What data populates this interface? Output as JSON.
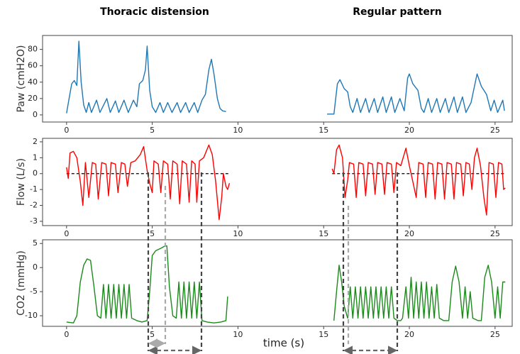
{
  "column_titles": [
    "Thoracic distension",
    "Regular pattern"
  ],
  "chart_data": [
    {
      "type": "line",
      "ylabel": "Paw (cmH2O)",
      "xlim": [
        -1.4,
        26
      ],
      "ylim": [
        -8.7,
        97
      ],
      "xticks": [
        0,
        5,
        10,
        15,
        20,
        25
      ],
      "yticks": [
        0,
        20,
        40,
        60,
        80
      ],
      "series": [
        {
          "color": "#1f77b4",
          "x": [
            0,
            0.15,
            0.3,
            0.45,
            0.6,
            0.72,
            0.85,
            1.0,
            1.15,
            1.3,
            1.45,
            1.75,
            1.95,
            2.35,
            2.55,
            2.85,
            3.05,
            3.35,
            3.6,
            3.9,
            4.1,
            4.25,
            4.45,
            4.6,
            4.7,
            4.85,
            5.0,
            5.2,
            5.45,
            5.65,
            5.9,
            6.15,
            6.45,
            6.65,
            6.95,
            7.15,
            7.45,
            7.65,
            7.9,
            8.1,
            8.3,
            8.45,
            8.6,
            8.8,
            8.95,
            9.1,
            9.3,
            12,
            15.2,
            15.6,
            15.8,
            15.95,
            16.2,
            16.4,
            16.55,
            16.7,
            16.95,
            17.15,
            17.45,
            17.65,
            17.95,
            18.15,
            18.45,
            18.65,
            18.95,
            19.15,
            19.45,
            19.7,
            19.9,
            20.0,
            20.2,
            20.5,
            20.7,
            20.85,
            21.1,
            21.3,
            21.6,
            21.8,
            22.1,
            22.3,
            22.6,
            22.8,
            23.1,
            23.3,
            23.6,
            23.8,
            23.95,
            24.2,
            24.5,
            24.75,
            24.95,
            25.15,
            25.45,
            25.55
          ],
          "values": [
            2,
            20,
            38,
            42,
            36,
            90,
            40,
            12,
            3,
            15,
            3,
            18,
            3,
            20,
            3,
            17,
            3,
            18,
            3,
            18,
            10,
            38,
            42,
            55,
            84,
            30,
            10,
            3,
            15,
            3,
            15,
            3,
            15,
            3,
            15,
            3,
            15,
            3,
            18,
            25,
            55,
            68,
            50,
            20,
            8,
            5,
            4,
            null,
            1,
            1,
            38,
            43,
            32,
            28,
            10,
            3,
            20,
            3,
            20,
            3,
            20,
            3,
            22,
            3,
            22,
            3,
            20,
            5,
            45,
            50,
            38,
            30,
            8,
            3,
            20,
            3,
            20,
            3,
            20,
            3,
            22,
            3,
            22,
            3,
            15,
            35,
            50,
            35,
            25,
            5,
            18,
            3,
            18,
            5
          ]
        }
      ]
    },
    {
      "type": "line",
      "ylabel": "Flow (L/s)",
      "xlim": [
        -1.4,
        26
      ],
      "ylim": [
        -3.27,
        2.22
      ],
      "xticks": [
        0,
        5,
        10,
        15,
        20,
        25
      ],
      "yticks": [
        -3,
        -2,
        -1,
        0,
        1,
        2
      ],
      "hline": 0,
      "series": [
        {
          "color": "#ff0000",
          "x": [
            0,
            0.1,
            0.2,
            0.4,
            0.6,
            0.8,
            0.95,
            1.1,
            1.3,
            1.5,
            1.7,
            1.85,
            2.05,
            2.3,
            2.45,
            2.6,
            2.85,
            3.0,
            3.2,
            3.4,
            3.55,
            3.75,
            4.0,
            4.3,
            4.5,
            4.7,
            4.85,
            5.0,
            5.1,
            5.35,
            5.5,
            5.65,
            5.9,
            6.05,
            6.2,
            6.45,
            6.6,
            6.75,
            7.0,
            7.15,
            7.3,
            7.5,
            7.6,
            7.75,
            8.0,
            8.3,
            8.5,
            8.7,
            8.9,
            9.05,
            9.15,
            9.3,
            9.4,
            9.5,
            12,
            15.5,
            15.6,
            15.75,
            15.9,
            16.1,
            16.25,
            16.4,
            16.5,
            16.75,
            16.9,
            17.05,
            17.3,
            17.45,
            17.6,
            17.85,
            18.0,
            18.15,
            18.4,
            18.55,
            18.7,
            18.95,
            19.1,
            19.25,
            19.5,
            19.8,
            20.0,
            20.2,
            20.4,
            20.55,
            20.8,
            20.95,
            21.1,
            21.35,
            21.5,
            21.65,
            21.9,
            22.05,
            22.2,
            22.45,
            22.6,
            22.75,
            23.0,
            23.15,
            23.3,
            23.5,
            23.65,
            23.8,
            23.95,
            24.15,
            24.35,
            24.5,
            24.65,
            24.9,
            25.05,
            25.2,
            25.4,
            25.5,
            25.6
          ],
          "values": [
            0.4,
            -0.3,
            1.3,
            1.4,
            1.0,
            -0.5,
            -2.0,
            0.7,
            -1.5,
            0.7,
            0.6,
            -1.6,
            0.7,
            0.6,
            -1.4,
            0.7,
            0.6,
            -1.2,
            0.7,
            0.6,
            -0.8,
            0.7,
            0.8,
            1.2,
            1.7,
            0.2,
            -0.6,
            -1.2,
            0.8,
            0.6,
            -1.2,
            0.8,
            0.6,
            -1.6,
            0.8,
            0.6,
            -1.9,
            0.8,
            0.6,
            -1.8,
            0.8,
            0.6,
            -1.8,
            0.8,
            1.0,
            1.8,
            1.2,
            -0.5,
            -2.9,
            -1.5,
            0.0,
            -0.8,
            -1.0,
            -0.6,
            null,
            0.3,
            0.0,
            1.5,
            1.8,
            1.0,
            -1.5,
            -0.4,
            0.7,
            0.6,
            -1.5,
            0.7,
            0.6,
            -1.4,
            0.7,
            0.6,
            -1.3,
            0.7,
            0.6,
            -1.3,
            0.7,
            0.6,
            -1.2,
            0.7,
            0.5,
            1.6,
            0.5,
            -0.5,
            -1.5,
            0.7,
            0.6,
            -1.5,
            0.7,
            0.6,
            -1.6,
            0.7,
            0.6,
            -1.6,
            0.7,
            0.6,
            -1.6,
            0.7,
            0.6,
            -1.4,
            0.7,
            0.6,
            -1.0,
            1.0,
            1.6,
            0.5,
            -1.5,
            -2.6,
            0.7,
            0.6,
            -1.5,
            0.7,
            0.6,
            -1.0,
            -0.9
          ]
        }
      ]
    },
    {
      "type": "line",
      "ylabel": "CO2 (mmHg)",
      "xlabel": "time (s)",
      "xlim": [
        -1.4,
        26
      ],
      "ylim": [
        -12.2,
        5.77
      ],
      "xticks": [
        0,
        5,
        10,
        15,
        20,
        25
      ],
      "yticks": [
        -10,
        -5,
        0,
        5
      ],
      "series": [
        {
          "color": "#1a8a1a",
          "x": [
            0,
            0.4,
            0.6,
            0.8,
            1.0,
            1.2,
            1.4,
            1.6,
            1.8,
            2.0,
            2.15,
            2.3,
            2.45,
            2.6,
            2.75,
            2.9,
            3.05,
            3.2,
            3.35,
            3.5,
            3.65,
            3.8,
            4.1,
            4.4,
            4.7,
            4.85,
            5.0,
            5.2,
            5.5,
            5.75,
            5.85,
            6.0,
            6.2,
            6.4,
            6.55,
            6.7,
            6.85,
            7.0,
            7.15,
            7.3,
            7.45,
            7.6,
            7.75,
            7.9,
            8.2,
            8.6,
            9.0,
            9.3,
            9.4,
            12,
            15.6,
            15.75,
            15.9,
            16.05,
            16.2,
            16.4,
            16.55,
            16.7,
            16.85,
            17.0,
            17.15,
            17.3,
            17.45,
            17.6,
            17.75,
            17.9,
            18.05,
            18.2,
            18.35,
            18.5,
            18.65,
            18.8,
            18.95,
            19.1,
            19.3,
            19.5,
            19.6,
            19.8,
            19.95,
            20.1,
            20.25,
            20.4,
            20.55,
            20.7,
            20.85,
            21.0,
            21.15,
            21.3,
            21.45,
            21.6,
            21.75,
            22.0,
            22.3,
            22.5,
            22.7,
            22.9,
            23.1,
            23.25,
            23.4,
            23.55,
            23.7,
            24.0,
            24.2,
            24.4,
            24.6,
            24.8,
            25.0,
            25.15,
            25.3,
            25.45,
            25.6
          ],
          "values": [
            -11.3,
            -11.5,
            -10,
            -3,
            0.5,
            1.8,
            1.5,
            -4,
            -10,
            -10.5,
            -3.5,
            -10.5,
            -3.5,
            -10.5,
            -3.5,
            -10.5,
            -3.5,
            -10.5,
            -3.5,
            -10.5,
            -3.5,
            -10.5,
            -11,
            -11.3,
            -11,
            -5,
            2.5,
            3.5,
            4,
            4.5,
            4.5,
            -4,
            -10,
            -10.5,
            -3,
            -10.5,
            -3,
            -10.5,
            -3,
            -10.5,
            -3,
            -10.5,
            -3,
            -11,
            -11.3,
            -11.5,
            -11.3,
            -11,
            -6,
            null,
            -11,
            -5,
            0.5,
            -3,
            -8,
            -10.5,
            -4,
            -10.5,
            -4,
            -10.5,
            -4,
            -10.5,
            -4,
            -10.5,
            -4,
            -10.5,
            -4,
            -10.5,
            -4,
            -10.5,
            -4,
            -10.5,
            -4,
            -10.5,
            -11,
            -11,
            -10.5,
            -4,
            -10.5,
            -2,
            -10.5,
            -3,
            -10.5,
            -3,
            -10.5,
            -3,
            -10.5,
            -4,
            -10.5,
            -3.5,
            -10.5,
            -11,
            -11,
            -3,
            0.3,
            -3,
            -10.5,
            -4,
            -10.5,
            -5,
            -10.5,
            -11,
            -11,
            -2,
            0.5,
            -3,
            -10.5,
            -4,
            -10.5,
            -3,
            -3
          ]
        }
      ]
    }
  ]
}
